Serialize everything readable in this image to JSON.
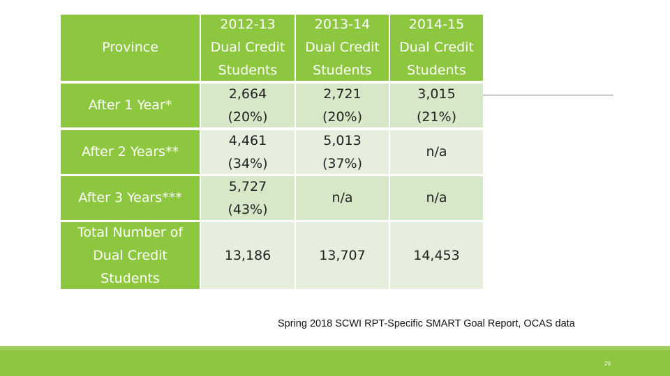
{
  "table": {
    "header": {
      "province": [
        "Province"
      ],
      "col_2012_13": [
        "2012-13",
        "Dual Credit",
        "Students"
      ],
      "col_2013_14": [
        "2013-14",
        "Dual Credit",
        "Students"
      ],
      "col_2014_15": [
        "2014-15",
        "Dual Credit",
        "Students"
      ]
    },
    "rows": [
      {
        "label": [
          "After 1 Year*"
        ],
        "c2012_13": [
          "2,664",
          "(20%)"
        ],
        "c2013_14": [
          "2,721",
          "(20%)"
        ],
        "c2014_15": [
          "3,015",
          "(21%)"
        ]
      },
      {
        "label": [
          "After 2 Years**"
        ],
        "c2012_13": [
          "4,461",
          "(34%)"
        ],
        "c2013_14": [
          "5,013",
          "(37%)"
        ],
        "c2014_15": [
          "n/a"
        ]
      },
      {
        "label": [
          "After 3 Years***"
        ],
        "c2012_13": [
          "5,727",
          "(43%)"
        ],
        "c2013_14": [
          "n/a"
        ],
        "c2014_15": [
          "n/a"
        ]
      },
      {
        "label": [
          "Total Number of",
          "Dual Credit",
          "Students"
        ],
        "c2012_13": [
          "13,186"
        ],
        "c2013_14": [
          "13,707"
        ],
        "c2014_15": [
          "14,453"
        ]
      }
    ]
  },
  "source_note": "Spring 2018 SCWI RPT-Specific SMART Goal Report, OCAS data",
  "page_number": "29",
  "colors": {
    "accent_green": "#8dc63f",
    "cell_light": "#d6e8c7",
    "cell_lighter": "#e6efdd"
  }
}
